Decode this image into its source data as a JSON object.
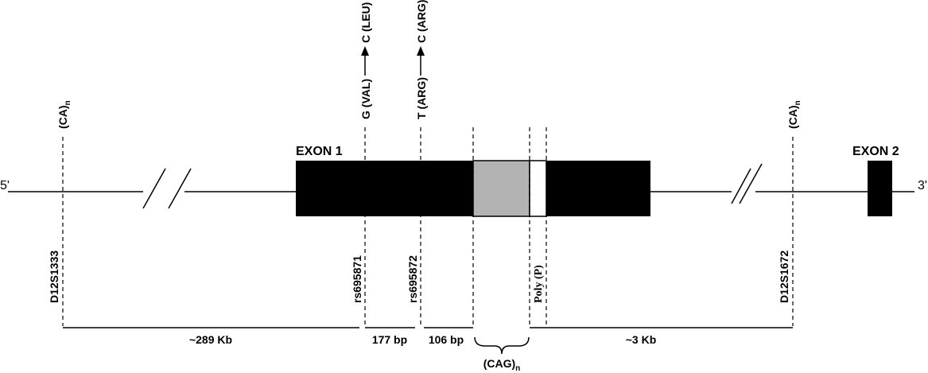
{
  "ends": {
    "left": "5'",
    "right": "3'"
  },
  "exons": [
    "EXON 1",
    "EXON 2"
  ],
  "markers_top": [
    {
      "text": "(CA)",
      "sub": "n"
    },
    {
      "text": "(CA)",
      "sub": "n"
    }
  ],
  "snps": [
    {
      "from": "G (VAL)",
      "to": "C (LEU)"
    },
    {
      "from": "T (ARG)",
      "to": "C (ARG)"
    }
  ],
  "markers_bottom": [
    "D12S1333",
    "rs695871",
    "rs695872",
    "Poly (P)",
    "D12S1672"
  ],
  "distances": [
    "~289 Kb",
    "177 bp",
    "106 bp",
    "~3 Kb"
  ],
  "repeat": {
    "text": "(CAG)",
    "sub": "n"
  }
}
